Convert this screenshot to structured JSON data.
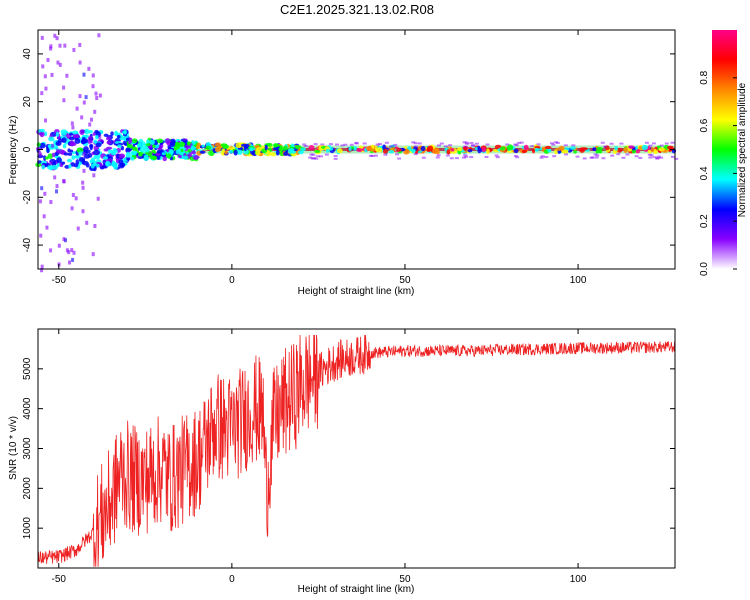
{
  "figure_title": "C2E1.2025.321.13.02.R08",
  "chart_data": [
    {
      "type": "heatmap",
      "xlabel": "Height of straight line (km)",
      "ylabel": "Frequency (Hz)",
      "xlim": [
        -56,
        128
      ],
      "ylim": [
        -50,
        50
      ],
      "xticks": [
        -50,
        0,
        50,
        100
      ],
      "yticks": [
        -40,
        -20,
        0,
        20,
        40
      ],
      "colorbar": {
        "label": "Normalized spectral amplitude",
        "range": [
          0,
          1
        ],
        "ticks": [
          "0.0",
          "0.2",
          "0.4",
          "0.6",
          "0.8"
        ],
        "colors": [
          "#ffffff",
          "#8800ff",
          "#0000ff",
          "#00ffff",
          "#00ff00",
          "#ffff00",
          "#ff8800",
          "#ff0000",
          "#ff0088"
        ]
      },
      "description_points": [
        {
          "x_range": [
            -56,
            -30
          ],
          "freq_spread": [
            -8,
            8
          ],
          "amplitude": 0.45
        },
        {
          "x_range": [
            -30,
            -10
          ],
          "freq_spread": [
            -4,
            4
          ],
          "amplitude": 0.55
        },
        {
          "x_range": [
            -10,
            20
          ],
          "freq_spread": [
            -2,
            2
          ],
          "amplitude": 0.8
        },
        {
          "x_range": [
            20,
            128
          ],
          "freq_spread": [
            -1,
            1
          ],
          "amplitude": 1.0
        }
      ]
    },
    {
      "type": "line",
      "xlabel": "Height of straight line (km)",
      "ylabel": "SNR (10 * v/v)",
      "xlim": [
        -56,
        128
      ],
      "ylim": [
        0,
        6000
      ],
      "xticks": [
        -50,
        0,
        50,
        100
      ],
      "yticks": [
        1000,
        2000,
        3000,
        4000,
        5000
      ],
      "series": [
        {
          "name": "SNR",
          "color": "#ee2222",
          "x": [
            -56,
            -50,
            -45,
            -40,
            -35,
            -32,
            -30,
            -28,
            -25,
            -22,
            -20,
            -18,
            -15,
            -12,
            -10,
            -8,
            -5,
            -2,
            0,
            3,
            6,
            9,
            10,
            12,
            15,
            18,
            20,
            25,
            30,
            35,
            40,
            50,
            60,
            70,
            80,
            90,
            100,
            110,
            120,
            128
          ],
          "y": [
            250,
            280,
            450,
            900,
            1650,
            2400,
            2300,
            2200,
            2200,
            2400,
            2500,
            2200,
            2400,
            2600,
            2700,
            3000,
            3600,
            3500,
            3500,
            3700,
            4000,
            3900,
            1900,
            3600,
            4100,
            4300,
            4600,
            4900,
            5200,
            5300,
            5400,
            5450,
            5450,
            5450,
            5480,
            5500,
            5520,
            5530,
            5540,
            5550
          ]
        }
      ]
    }
  ]
}
